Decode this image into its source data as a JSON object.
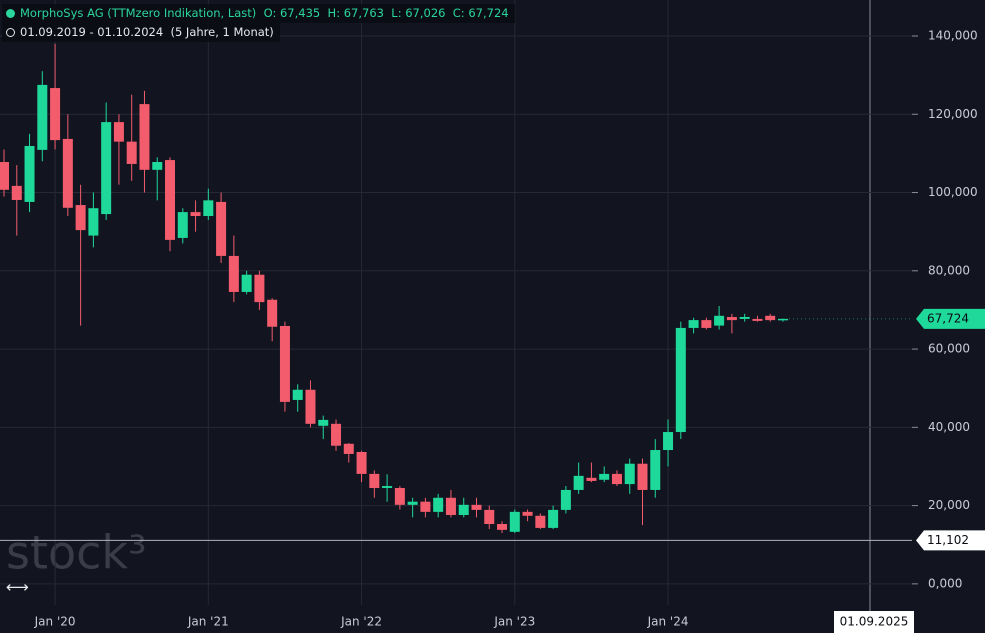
{
  "chart_data": {
    "type": "candlestick",
    "title": "MorphoSys AG (TTMzero Indikation, Last)",
    "ohlc_labels": [
      "O: 67,435",
      "H: 67,763",
      "L: 67,026",
      "C: 67,724"
    ],
    "subtitle": "01.09.2019 - 01.10.2024",
    "period": "(5 Jahre, 1 Monat)",
    "watermark": "stock³",
    "categories": [
      null,
      null,
      null,
      null,
      "Jan '20",
      null,
      null,
      null,
      null,
      null,
      null,
      null,
      null,
      null,
      null,
      null,
      "Jan '21",
      null,
      null,
      null,
      null,
      null,
      null,
      null,
      null,
      null,
      null,
      null,
      "Jan '22",
      null,
      null,
      null,
      null,
      null,
      null,
      null,
      null,
      null,
      null,
      null,
      "Jan '23",
      null,
      null,
      null,
      null,
      null,
      null,
      null,
      null,
      null,
      null,
      null,
      "Jan '24",
      null,
      null,
      null,
      null,
      null,
      null,
      null,
      null,
      null
    ],
    "open": [
      107.8,
      101.7,
      97.6,
      110.9,
      126.7,
      113.7,
      96.8,
      89,
      94.5,
      118,
      113,
      122.6,
      105.8,
      108.3,
      88.4,
      95,
      94,
      97.6,
      83.8,
      74.6,
      79,
      72.6,
      65.9,
      47,
      49.6,
      40.4,
      40.9,
      35.8,
      33.7,
      28.1,
      24.5,
      24.5,
      20.2,
      21,
      18.4,
      22,
      17.6,
      20.2,
      18.9,
      15.3,
      13.3,
      18.4,
      17.4,
      14.3,
      18.9,
      24,
      27.1,
      26.6,
      28.1,
      25.5,
      30.7,
      24,
      34.2,
      38.8,
      65.4,
      67.4,
      66,
      68.2,
      67.7,
      67.7,
      68.5,
      67.435
    ],
    "high": [
      111,
      107,
      115,
      131,
      138,
      120,
      102,
      100,
      123,
      120,
      125,
      126,
      109,
      109,
      96,
      98,
      101,
      100,
      89,
      80,
      80,
      73,
      67,
      51,
      52,
      43,
      42,
      36,
      34,
      29,
      28,
      25,
      22,
      22,
      23,
      24,
      22,
      22,
      20,
      16,
      19,
      19,
      18,
      20,
      25,
      31,
      31,
      30,
      29,
      32,
      32,
      37,
      42,
      67,
      68,
      68,
      71,
      69,
      69,
      68.5,
      69,
      67.763
    ],
    "low": [
      99,
      89,
      95,
      108,
      111,
      94,
      66,
      86,
      93,
      102,
      103,
      100,
      98,
      85,
      87,
      90,
      93,
      82,
      72,
      74,
      70,
      62,
      44,
      44,
      40,
      37,
      34,
      31,
      26,
      22,
      21,
      19,
      17,
      17,
      17,
      17,
      17,
      17,
      14,
      13,
      13,
      16,
      14,
      14,
      18,
      23,
      26,
      26,
      25,
      23,
      15,
      22,
      30,
      37,
      64,
      65,
      65,
      64,
      67,
      67,
      67,
      67.026
    ],
    "close": [
      100.7,
      98.1,
      111.9,
      127.5,
      113.4,
      96.1,
      90.4,
      96,
      118,
      113,
      107.3,
      105.8,
      107.8,
      87.9,
      95,
      94,
      98,
      83.8,
      74.6,
      79,
      72,
      65.7,
      46.5,
      49.6,
      40.9,
      41.9,
      35.3,
      33.2,
      28.1,
      24.5,
      25,
      20.2,
      21,
      18.4,
      22,
      17.6,
      20.2,
      18.9,
      15.3,
      13.8,
      18.4,
      17.4,
      14.3,
      18.9,
      24,
      27.6,
      26.3,
      28.1,
      25.5,
      30.7,
      24,
      34.2,
      38.8,
      65.4,
      67.4,
      65.4,
      68.5,
      67.4,
      68.2,
      67.2,
      67.4,
      67.724
    ],
    "up_color": "#1fd99a",
    "down_color": "#f25c6c",
    "ylim": [
      -5.4,
      149.2
    ],
    "yticks": [
      {
        "value": 0,
        "label": "0,000"
      },
      {
        "value": 20,
        "label": "20,000"
      },
      {
        "value": 40,
        "label": "40,000"
      },
      {
        "value": 60,
        "label": "60,000"
      },
      {
        "value": 80,
        "label": "80,000"
      },
      {
        "value": 100,
        "label": "100,000"
      },
      {
        "value": 120,
        "label": "120,000"
      },
      {
        "value": 140,
        "label": "140,000"
      }
    ],
    "grid": true,
    "last_price": {
      "value": 67.724,
      "label": "67,724"
    },
    "crosshair": {
      "value": 11.102,
      "label": "11,102",
      "x_label": "01.09.2025"
    }
  }
}
